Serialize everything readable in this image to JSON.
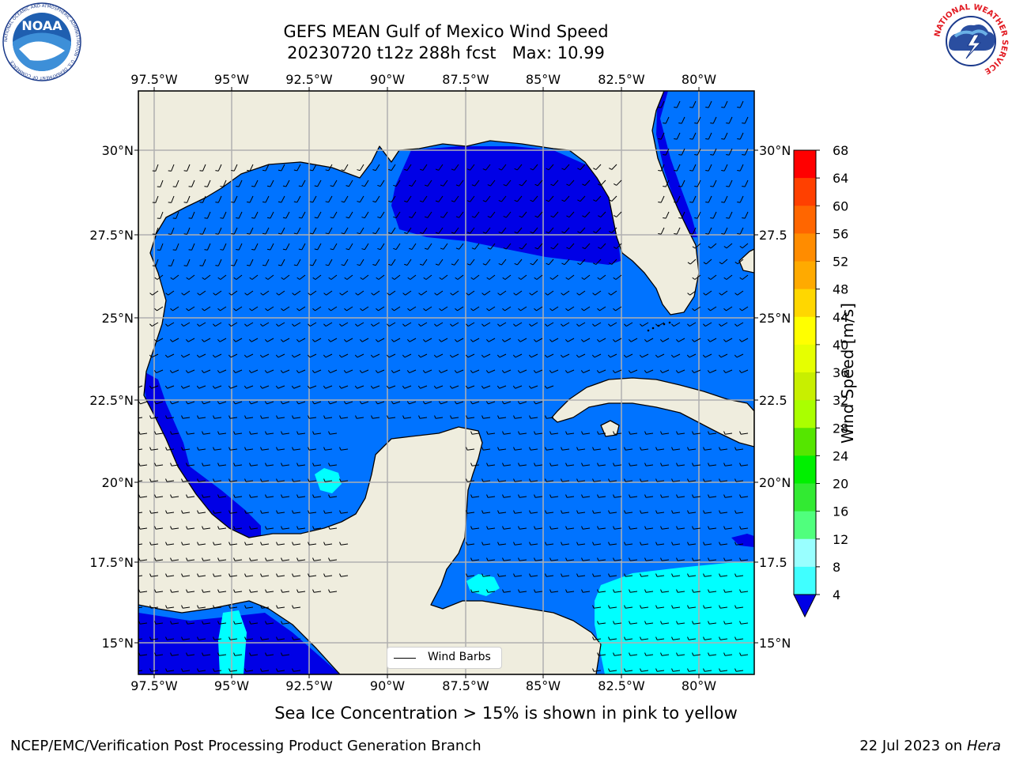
{
  "title": {
    "line1": "GEFS MEAN Gulf of Mexico Wind Speed",
    "line2": "20230720 t12z 288h fcst   Max: 10.99"
  },
  "map": {
    "lon_ticks": [
      "97.5°W",
      "95°W",
      "92.5°W",
      "90°W",
      "87.5°W",
      "85°W",
      "82.5°W",
      "80°W"
    ],
    "lat_ticks_left": [
      "30°N",
      "27.5°N",
      "25°N",
      "22.5°N",
      "20°N",
      "17.5°N",
      "15°N"
    ],
    "lat_ticks_right": [
      "30°N",
      "27.5",
      "25°N",
      "22.5",
      "20°N",
      "17.5",
      "15°N"
    ],
    "land_color": "#efedde",
    "legend_label": "Wind Barbs"
  },
  "colorbar": {
    "label": "Wind Speed [m/s]",
    "ticks": [
      "68",
      "64",
      "60",
      "56",
      "52",
      "48",
      "44",
      "40",
      "36",
      "32",
      "28",
      "24",
      "20",
      "16",
      "12",
      "8",
      "4"
    ],
    "colors": [
      "#0000e6",
      "#0073ff",
      "#00ffff",
      "#40ffff",
      "#99ffff",
      "#50ff7d",
      "#32ea32",
      "#00f000",
      "#55e600",
      "#aaff00",
      "#c8ef00",
      "#e6ff00",
      "#ffff00",
      "#ffd700",
      "#ffaa00",
      "#ff8c00",
      "#ff6600",
      "#ff4000",
      "#ff0000"
    ]
  },
  "logos": {
    "noaa_text": "NOAA",
    "noaa_ring": "NATIONAL OCEANIC AND ATMOSPHERIC ADMINISTRATION · U.S. DEPARTMENT OF COMMERCE",
    "nws_ring": "NATIONAL WEATHER SERVICE"
  },
  "sea_ice_note": "Sea Ice Concentration > 15% is shown in pink to yellow",
  "footer": {
    "left": "NCEP/EMC/Verification Post Processing Product Generation Branch",
    "right_date": "22 Jul 2023 on ",
    "right_machine": "Hera"
  }
}
